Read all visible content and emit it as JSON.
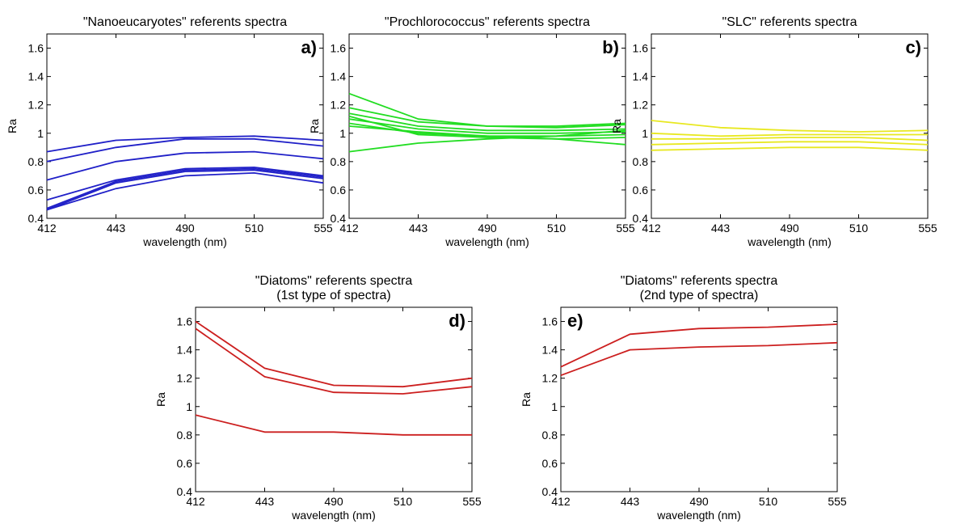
{
  "chart_data": [
    {
      "type": "line",
      "title": [
        "\"Nanoeucaryotes\" referents spectra"
      ],
      "panel_label": "a)",
      "xlabel": "wavelength (nm)",
      "ylabel": "Ra",
      "categories": [
        "412",
        "443",
        "490",
        "510",
        "555"
      ],
      "ylim": [
        0.4,
        1.7
      ],
      "yticks": [
        "0.4",
        "0.6",
        "0.8",
        "1",
        "1.2",
        "1.4",
        "1.6"
      ],
      "color": "#2020c8",
      "series": [
        {
          "values": [
            0.87,
            0.95,
            0.97,
            0.98,
            0.95
          ]
        },
        {
          "values": [
            0.8,
            0.9,
            0.96,
            0.96,
            0.91
          ]
        },
        {
          "values": [
            0.67,
            0.8,
            0.86,
            0.87,
            0.82
          ]
        },
        {
          "values": [
            0.53,
            0.67,
            0.75,
            0.76,
            0.7
          ]
        },
        {
          "values": [
            0.47,
            0.66,
            0.74,
            0.75,
            0.69
          ]
        },
        {
          "values": [
            0.46,
            0.65,
            0.73,
            0.74,
            0.68
          ]
        },
        {
          "values": [
            0.46,
            0.61,
            0.7,
            0.72,
            0.65
          ]
        }
      ]
    },
    {
      "type": "line",
      "title": [
        "\"Prochlorococcus\" referents spectra"
      ],
      "panel_label": "b)",
      "xlabel": "wavelength (nm)",
      "ylabel": "Ra",
      "categories": [
        "412",
        "443",
        "490",
        "510",
        "555"
      ],
      "ylim": [
        0.4,
        1.7
      ],
      "yticks": [
        "0.4",
        "0.6",
        "0.8",
        "1",
        "1.2",
        "1.4",
        "1.6"
      ],
      "color": "#22dd22",
      "series": [
        {
          "values": [
            1.28,
            1.1,
            1.05,
            1.05,
            1.07
          ]
        },
        {
          "values": [
            1.18,
            1.08,
            1.05,
            1.04,
            1.06
          ]
        },
        {
          "values": [
            1.14,
            1.05,
            1.02,
            1.02,
            1.03
          ]
        },
        {
          "values": [
            1.1,
            1.03,
            1.0,
            1.0,
            1.01
          ]
        },
        {
          "values": [
            1.07,
            1.0,
            0.98,
            0.98,
            0.99
          ]
        },
        {
          "values": [
            1.12,
            0.99,
            0.97,
            0.96,
            0.97
          ]
        },
        {
          "values": [
            1.05,
            1.01,
            0.98,
            0.96,
            0.92
          ]
        },
        {
          "values": [
            0.87,
            0.93,
            0.96,
            0.98,
            1.02
          ]
        }
      ]
    },
    {
      "type": "line",
      "title": [
        "\"SLC\" referents spectra"
      ],
      "panel_label": "c)",
      "xlabel": "wavelength (nm)",
      "ylabel": "Ra",
      "categories": [
        "412",
        "443",
        "490",
        "510",
        "555"
      ],
      "ylim": [
        0.4,
        1.7
      ],
      "yticks": [
        "0.4",
        "0.6",
        "0.8",
        "1",
        "1.2",
        "1.4",
        "1.6"
      ],
      "color": "#e8e820",
      "series": [
        {
          "values": [
            1.09,
            1.04,
            1.02,
            1.01,
            1.02
          ]
        },
        {
          "values": [
            1.0,
            0.98,
            0.99,
            0.99,
            0.99
          ]
        },
        {
          "values": [
            0.96,
            0.96,
            0.97,
            0.97,
            0.95
          ]
        },
        {
          "values": [
            0.92,
            0.93,
            0.94,
            0.94,
            0.92
          ]
        },
        {
          "values": [
            0.88,
            0.89,
            0.9,
            0.9,
            0.88
          ]
        }
      ]
    },
    {
      "type": "line",
      "title": [
        "\"Diatoms\" referents spectra",
        "(1st type of spectra)"
      ],
      "panel_label": "d)",
      "xlabel": "wavelength (nm)",
      "ylabel": "Ra",
      "categories": [
        "412",
        "443",
        "490",
        "510",
        "555"
      ],
      "ylim": [
        0.4,
        1.7
      ],
      "yticks": [
        "0.4",
        "0.6",
        "0.8",
        "1",
        "1.2",
        "1.4",
        "1.6"
      ],
      "color": "#cc1f1f",
      "series": [
        {
          "values": [
            1.6,
            1.27,
            1.15,
            1.14,
            1.2
          ]
        },
        {
          "values": [
            1.55,
            1.21,
            1.1,
            1.09,
            1.14
          ]
        },
        {
          "values": [
            0.94,
            0.82,
            0.82,
            0.8,
            0.8
          ]
        }
      ]
    },
    {
      "type": "line",
      "title": [
        "\"Diatoms\" referents spectra",
        "(2nd type of spectra)"
      ],
      "panel_label": "e)",
      "xlabel": "wavelength (nm)",
      "ylabel": "Ra",
      "categories": [
        "412",
        "443",
        "490",
        "510",
        "555"
      ],
      "ylim": [
        0.4,
        1.7
      ],
      "yticks": [
        "0.4",
        "0.6",
        "0.8",
        "1",
        "1.2",
        "1.4",
        "1.6"
      ],
      "color": "#cc1f1f",
      "series": [
        {
          "values": [
            1.28,
            1.51,
            1.55,
            1.56,
            1.58
          ]
        },
        {
          "values": [
            1.22,
            1.4,
            1.42,
            1.43,
            1.45
          ]
        }
      ]
    }
  ]
}
